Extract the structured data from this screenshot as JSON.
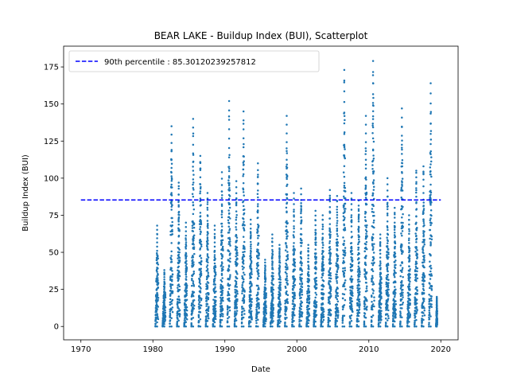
{
  "chart_data": {
    "type": "scatter",
    "title": "BEAR LAKE - Buildup Index (BUI), Scatterplot",
    "xlabel": "Date",
    "ylabel": "Buildup Index (BUI)",
    "xlim": [
      1967.6,
      2022.4
    ],
    "ylim": [
      -9,
      189
    ],
    "xticks": [
      1970,
      1980,
      1990,
      2000,
      2010,
      2020
    ],
    "yticks": [
      0,
      25,
      50,
      75,
      100,
      125,
      150,
      175
    ],
    "grid": false,
    "legend_position": "top-left",
    "series": [
      {
        "name": "90th percentile : 85.30120239257812",
        "kind": "line",
        "style": "dashed",
        "color": "#0000ff",
        "x": [
          1970,
          2020
        ],
        "y": [
          85.30120239257812,
          85.30120239257812
        ]
      },
      {
        "kind": "scatter",
        "color": "#1f77b4",
        "seasons": [
          {
            "year": 1980,
            "start": 1980.35,
            "end": 1980.75,
            "max": 68,
            "end_val": 42
          },
          {
            "year": 1981,
            "start": 1981.35,
            "end": 1981.75,
            "max": 38,
            "end_val": 20
          },
          {
            "year": 1982,
            "start": 1982.35,
            "end": 1982.75,
            "max": 135,
            "end_val": 60
          },
          {
            "year": 1983,
            "start": 1983.35,
            "end": 1983.75,
            "max": 97,
            "end_val": 45
          },
          {
            "year": 1984,
            "start": 1984.35,
            "end": 1984.75,
            "max": 70,
            "end_val": 30
          },
          {
            "year": 1985,
            "start": 1985.35,
            "end": 1985.75,
            "max": 140,
            "end_val": 70
          },
          {
            "year": 1986,
            "start": 1986.35,
            "end": 1986.75,
            "max": 115,
            "end_val": 55
          },
          {
            "year": 1987,
            "start": 1987.35,
            "end": 1987.75,
            "max": 90,
            "end_val": 40
          },
          {
            "year": 1988,
            "start": 1988.35,
            "end": 1988.75,
            "max": 68,
            "end_val": 35
          },
          {
            "year": 1989,
            "start": 1989.35,
            "end": 1989.75,
            "max": 104,
            "end_val": 50
          },
          {
            "year": 1990,
            "start": 1990.35,
            "end": 1990.75,
            "max": 152,
            "end_val": 70
          },
          {
            "year": 1991,
            "start": 1991.35,
            "end": 1991.75,
            "max": 98,
            "end_val": 45
          },
          {
            "year": 1992,
            "start": 1992.35,
            "end": 1992.75,
            "max": 145,
            "end_val": 65
          },
          {
            "year": 1993,
            "start": 1993.35,
            "end": 1993.75,
            "max": 72,
            "end_val": 35
          },
          {
            "year": 1994,
            "start": 1994.35,
            "end": 1994.75,
            "max": 110,
            "end_val": 50
          },
          {
            "year": 1995,
            "start": 1995.35,
            "end": 1995.75,
            "max": 45,
            "end_val": 22
          },
          {
            "year": 1996,
            "start": 1996.35,
            "end": 1996.75,
            "max": 62,
            "end_val": 30
          },
          {
            "year": 1997,
            "start": 1997.35,
            "end": 1997.75,
            "max": 55,
            "end_val": 28
          },
          {
            "year": 1998,
            "start": 1998.35,
            "end": 1998.75,
            "max": 142,
            "end_val": 60
          },
          {
            "year": 1999,
            "start": 1999.35,
            "end": 1999.75,
            "max": 90,
            "end_val": 40
          },
          {
            "year": 2000,
            "start": 2000.35,
            "end": 2000.75,
            "max": 93,
            "end_val": 45
          },
          {
            "year": 2001,
            "start": 2001.35,
            "end": 2001.75,
            "max": 55,
            "end_val": 25
          },
          {
            "year": 2002,
            "start": 2002.35,
            "end": 2002.75,
            "max": 78,
            "end_val": 35
          },
          {
            "year": 2003,
            "start": 2003.35,
            "end": 2003.75,
            "max": 75,
            "end_val": 35
          },
          {
            "year": 2004,
            "start": 2004.35,
            "end": 2004.75,
            "max": 92,
            "end_val": 45
          },
          {
            "year": 2005,
            "start": 2005.35,
            "end": 2005.75,
            "max": 88,
            "end_val": 40
          },
          {
            "year": 2006,
            "start": 2006.35,
            "end": 2006.75,
            "max": 173,
            "end_val": 80
          },
          {
            "year": 2007,
            "start": 2007.35,
            "end": 2007.75,
            "max": 90,
            "end_val": 40
          },
          {
            "year": 2008,
            "start": 2008.35,
            "end": 2008.75,
            "max": 85,
            "end_val": 38
          },
          {
            "year": 2009,
            "start": 2009.35,
            "end": 2009.75,
            "max": 142,
            "end_val": 65
          },
          {
            "year": 2010,
            "start": 2010.35,
            "end": 2010.75,
            "max": 179,
            "end_val": 85
          },
          {
            "year": 2011,
            "start": 2011.35,
            "end": 2011.75,
            "max": 62,
            "end_val": 30
          },
          {
            "year": 2012,
            "start": 2012.35,
            "end": 2012.75,
            "max": 100,
            "end_val": 45
          },
          {
            "year": 2013,
            "start": 2013.35,
            "end": 2013.75,
            "max": 80,
            "end_val": 38
          },
          {
            "year": 2014,
            "start": 2014.35,
            "end": 2014.75,
            "max": 147,
            "end_val": 70
          },
          {
            "year": 2015,
            "start": 2015.35,
            "end": 2015.75,
            "max": 75,
            "end_val": 35
          },
          {
            "year": 2016,
            "start": 2016.35,
            "end": 2016.75,
            "max": 105,
            "end_val": 50
          },
          {
            "year": 2017,
            "start": 2017.35,
            "end": 2017.75,
            "max": 108,
            "end_val": 50
          },
          {
            "year": 2018,
            "start": 2018.35,
            "end": 2018.75,
            "max": 164,
            "end_val": 75
          },
          {
            "year": 2019,
            "start": 2019.35,
            "end": 2019.5,
            "max": 20,
            "end_val": 8
          }
        ]
      }
    ]
  }
}
